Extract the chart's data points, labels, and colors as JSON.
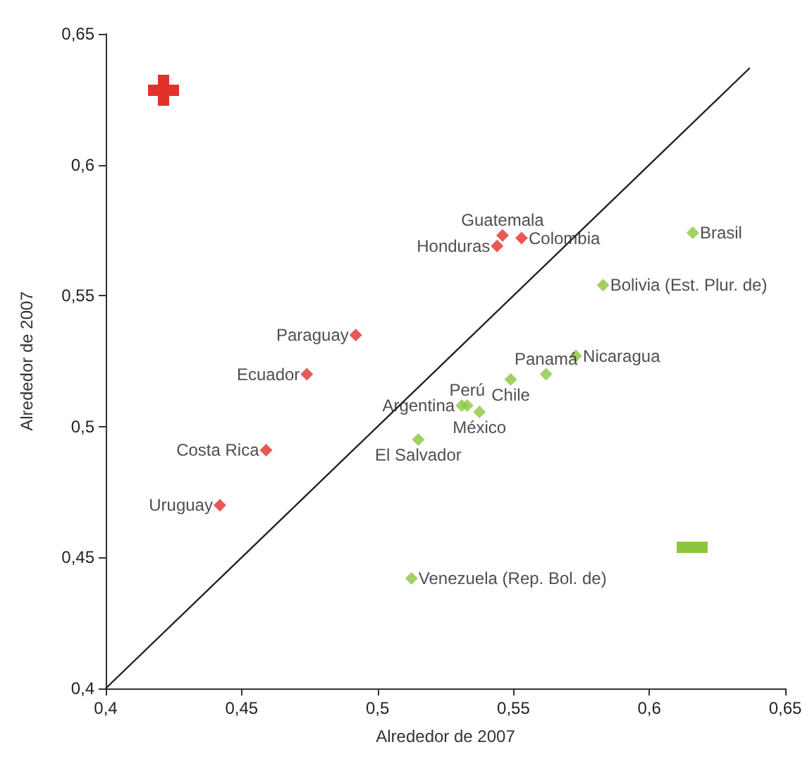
{
  "chart_data": {
    "type": "scatter",
    "xlabel": "Alrededor de 2007",
    "ylabel": "Alrededor de 2007",
    "xlim": [
      0.4,
      0.65
    ],
    "ylim": [
      0.4,
      0.65
    ],
    "xticks": [
      {
        "value": 0.4,
        "label": "0,4"
      },
      {
        "value": 0.45,
        "label": "0,45"
      },
      {
        "value": 0.5,
        "label": "0,5"
      },
      {
        "value": 0.55,
        "label": "0,55"
      },
      {
        "value": 0.6,
        "label": "0,6"
      },
      {
        "value": 0.65,
        "label": "0,65"
      }
    ],
    "yticks": [
      {
        "value": 0.4,
        "label": "0,4"
      },
      {
        "value": 0.45,
        "label": "0,45"
      },
      {
        "value": 0.5,
        "label": "0,5"
      },
      {
        "value": 0.55,
        "label": "0,55"
      },
      {
        "value": 0.6,
        "label": "0,6"
      },
      {
        "value": 0.65,
        "label": "0,65"
      }
    ],
    "grid": false,
    "marker": "diamond",
    "series": [
      {
        "color": "#e0312b",
        "x": [
          0.442,
          0.459,
          0.474,
          0.492,
          0.546,
          0.544,
          0.553
        ],
        "values": [
          0.47,
          0.491,
          0.52,
          0.535,
          0.573,
          0.569,
          0.572
        ]
      },
      {
        "color": "#8cc63f",
        "x": [
          0.616,
          0.583,
          0.573,
          0.562,
          0.549,
          0.531,
          0.533,
          0.5375,
          0.515,
          0.5125
        ],
        "values": [
          0.574,
          0.554,
          0.527,
          0.52,
          0.518,
          0.508,
          0.508,
          0.5056,
          0.495,
          0.442
        ]
      },
      {
        "type": "line",
        "marker": "none",
        "color": "#222222",
        "x": [
          0.4,
          0.637
        ],
        "values": [
          0.4,
          0.637
        ]
      }
    ],
    "annotations": [
      {
        "text": "Uruguay",
        "x": 0.442,
        "y": 0.47
      },
      {
        "text": "Costa Rica",
        "x": 0.459,
        "y": 0.491
      },
      {
        "text": "Ecuador",
        "x": 0.474,
        "y": 0.52
      },
      {
        "text": "Paraguay",
        "x": 0.492,
        "y": 0.535
      },
      {
        "text": "Guatemala",
        "x": 0.546,
        "y": 0.573
      },
      {
        "text": "Honduras",
        "x": 0.544,
        "y": 0.569
      },
      {
        "text": "Colombia",
        "x": 0.553,
        "y": 0.572
      },
      {
        "text": "Brasil",
        "x": 0.616,
        "y": 0.574
      },
      {
        "text": "Bolivia (Est. Plur. de)",
        "x": 0.583,
        "y": 0.554
      },
      {
        "text": "Nicaragua",
        "x": 0.573,
        "y": 0.527
      },
      {
        "text": "Panamá",
        "x": 0.562,
        "y": 0.52
      },
      {
        "text": "Chile",
        "x": 0.549,
        "y": 0.518
      },
      {
        "text": "Argentina",
        "x": 0.531,
        "y": 0.508
      },
      {
        "text": "Perú",
        "x": 0.533,
        "y": 0.508
      },
      {
        "text": "México",
        "x": 0.5375,
        "y": 0.5056
      },
      {
        "text": "El Salvador",
        "x": 0.515,
        "y": 0.495
      },
      {
        "text": "Venezuela (Rep. Bol. de)",
        "x": 0.5125,
        "y": 0.442
      }
    ]
  }
}
